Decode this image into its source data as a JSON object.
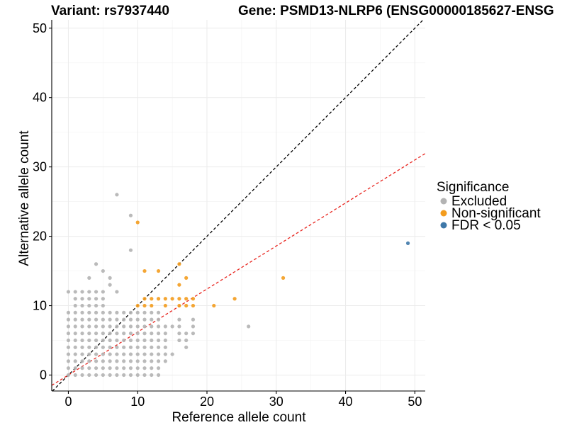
{
  "chart_data": {
    "type": "scatter",
    "title_left": "Variant: rs7937440",
    "title_right": "Gene: PSMD13-NLRP6 (ENSG00000185627-ENSG",
    "xlabel": "Reference allele count",
    "ylabel": "Alternative allele count",
    "xlim": [
      -2.4,
      51.5
    ],
    "ylim": [
      -2.3,
      51.2
    ],
    "xticks": [
      0,
      10,
      20,
      30,
      40,
      50
    ],
    "yticks": [
      0,
      10,
      20,
      30,
      40,
      50
    ],
    "grid": true,
    "legend": {
      "title": "Significance",
      "position": "right",
      "entries": [
        {
          "label": "Excluded",
          "color": "#b3b3b3"
        },
        {
          "label": "Non-significant",
          "color": "#f39c1e"
        },
        {
          "label": "FDR < 0.05",
          "color": "#3e78a8"
        }
      ]
    },
    "reference_lines": [
      {
        "name": "identity",
        "slope": 1,
        "intercept": 0,
        "color": "#000000",
        "dash": "dashed"
      },
      {
        "name": "expected-ratio",
        "slope": 0.62,
        "intercept": 0,
        "color": "#e8251f",
        "dash": "dashed"
      }
    ],
    "series": [
      {
        "group": "excluded",
        "color": "#b3b3b3",
        "grid_blocks": [
          {
            "x": [
              0,
              9
            ],
            "y": [
              0,
              9
            ]
          },
          {
            "x": [
              10,
              13
            ],
            "y": [
              0,
              9
            ]
          },
          {
            "x": [
              1,
              5
            ],
            "y": [
              10,
              12
            ]
          }
        ],
        "points": [
          [
            0,
            12
          ],
          [
            3,
            14
          ],
          [
            4,
            16
          ],
          [
            5,
            15
          ],
          [
            6,
            14
          ],
          [
            6,
            13
          ],
          [
            7,
            12
          ],
          [
            7,
            26
          ],
          [
            9,
            23
          ],
          [
            9,
            18
          ],
          [
            14,
            7
          ],
          [
            14,
            6
          ],
          [
            14,
            5
          ],
          [
            14,
            4
          ],
          [
            14,
            3
          ],
          [
            14,
            2
          ],
          [
            15,
            7
          ],
          [
            15,
            3
          ],
          [
            16,
            8
          ],
          [
            16,
            7
          ],
          [
            16,
            6
          ],
          [
            16,
            5
          ],
          [
            17,
            6
          ],
          [
            17,
            5
          ],
          [
            17,
            4
          ],
          [
            18,
            8
          ],
          [
            18,
            7
          ],
          [
            18,
            6
          ],
          [
            26,
            7
          ]
        ]
      },
      {
        "group": "non-significant",
        "color": "#f39c1e",
        "points": [
          [
            10,
            22
          ],
          [
            10,
            10
          ],
          [
            11,
            15
          ],
          [
            11,
            11
          ],
          [
            11,
            10
          ],
          [
            12,
            11
          ],
          [
            12,
            10
          ],
          [
            13,
            15
          ],
          [
            13,
            11
          ],
          [
            14,
            11
          ],
          [
            14,
            10
          ],
          [
            15,
            11
          ],
          [
            16,
            16
          ],
          [
            16,
            13
          ],
          [
            16,
            11
          ],
          [
            16,
            10
          ],
          [
            17,
            14
          ],
          [
            17,
            11
          ],
          [
            17,
            10
          ],
          [
            18,
            11
          ],
          [
            18,
            10
          ],
          [
            21,
            10
          ],
          [
            24,
            11
          ],
          [
            31,
            14
          ]
        ]
      },
      {
        "group": "fdr-significant",
        "color": "#3e78a8",
        "points": [
          [
            49,
            19
          ]
        ]
      }
    ]
  }
}
